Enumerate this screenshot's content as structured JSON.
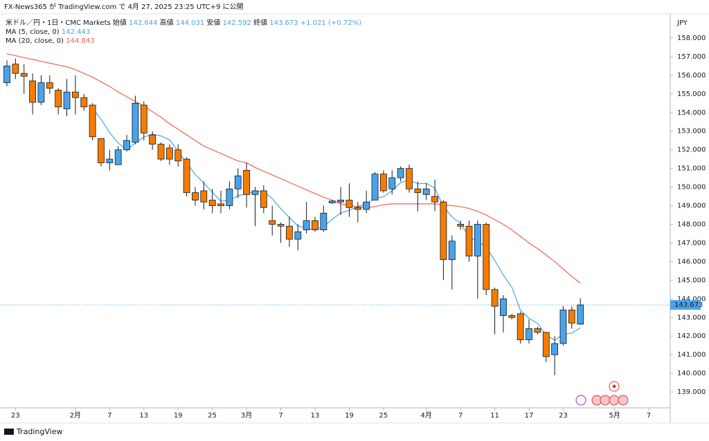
{
  "chart_data": {
    "type": "candlestick",
    "publisher": "FX-News365 が TradingView.com で 4月 27, 2025 23:25 UTC+9 に公開",
    "symbol": "米ドル／円・1日・CMC Markets",
    "ohlc_info": [
      {
        "label": "始値",
        "value": "142.644"
      },
      {
        "label": "高値",
        "value": "144.031"
      },
      {
        "label": "安値",
        "value": "142.592"
      },
      {
        "label": "終値",
        "value": "143.673"
      }
    ],
    "change": "+1.021 (+0.72%)",
    "currency": "JPY",
    "brand": "TradingView",
    "up_color": "#4aa3e8",
    "down_color": "#f57c00",
    "x": [
      0,
      1,
      2,
      3,
      4,
      5,
      6,
      7,
      8,
      9,
      10,
      11,
      12,
      13,
      14,
      15,
      16,
      17,
      18,
      19,
      20,
      21,
      22,
      23,
      24,
      25,
      26,
      27,
      28,
      29,
      30,
      31,
      32,
      33,
      34,
      35,
      36,
      37,
      38,
      39,
      40,
      41,
      42,
      43,
      44,
      45,
      46,
      47,
      48,
      49,
      50,
      51,
      52,
      53,
      54,
      55,
      56,
      57,
      58,
      59,
      60,
      61,
      62,
      63,
      64,
      65,
      66,
      67
    ],
    "open": [
      155.6,
      156.6,
      156.1,
      155.7,
      154.55,
      155.6,
      155.2,
      154.2,
      155.1,
      154.8,
      154.4,
      152.6,
      151.3,
      151.2,
      152.0,
      152.4,
      154.4,
      152.8,
      152.3,
      152.1,
      152.0,
      151.5,
      149.7,
      149.8,
      149.3,
      149.1,
      149.0,
      149.9,
      150.9,
      149.6,
      149.8,
      148.2,
      148.0,
      147.9,
      147.2,
      147.7,
      148.2,
      147.7,
      149.15,
      149.2,
      149.3,
      148.9,
      148.8,
      149.3,
      150.7,
      149.9,
      150.5,
      151.0,
      149.9,
      149.6,
      149.5,
      149.2,
      146.1,
      148.0,
      147.9,
      146.3,
      148.0,
      144.5,
      143.1,
      143.1,
      143.2,
      141.8,
      142.4,
      142.2,
      141.0,
      141.6,
      143.4,
      142.644
    ],
    "high": [
      156.8,
      156.9,
      156.6,
      156.1,
      156.0,
      156.0,
      155.3,
      155.8,
      156.0,
      155.0,
      154.5,
      152.6,
      152.0,
      152.2,
      152.8,
      154.9,
      154.6,
      153.0,
      152.4,
      152.3,
      152.3,
      151.6,
      150.0,
      150.3,
      149.9,
      149.8,
      150.3,
      151.0,
      151.3,
      150.0,
      150.1,
      149.0,
      148.1,
      148.4,
      148.0,
      149.2,
      148.4,
      149.0,
      149.3,
      150.0,
      150.2,
      149.2,
      149.8,
      150.8,
      150.9,
      150.9,
      151.1,
      151.2,
      150.3,
      150.2,
      150.4,
      149.3,
      147.4,
      148.2,
      148.2,
      148.2,
      148.1,
      144.6,
      144.2,
      143.2,
      143.3,
      142.9,
      142.5,
      142.2,
      142.0,
      143.6,
      143.6,
      144.031
    ],
    "low": [
      155.4,
      155.8,
      155.0,
      153.9,
      154.4,
      155.0,
      153.9,
      153.8,
      153.9,
      154.1,
      152.5,
      151.1,
      150.9,
      151.2,
      151.9,
      152.3,
      152.5,
      152.0,
      151.4,
      151.2,
      151.1,
      149.5,
      149.0,
      148.8,
      148.6,
      148.6,
      148.8,
      149.4,
      148.9,
      147.9,
      148.6,
      147.4,
      147.0,
      146.8,
      146.6,
      147.5,
      147.6,
      147.6,
      149.1,
      148.5,
      148.4,
      148.1,
      148.6,
      149.3,
      149.7,
      149.6,
      150.3,
      149.7,
      148.7,
      149.3,
      148.7,
      145.0,
      144.5,
      147.7,
      146.0,
      144.0,
      144.2,
      142.1,
      142.2,
      142.9,
      141.6,
      141.6,
      142.1,
      140.6,
      139.9,
      141.5,
      142.4,
      142.592
    ],
    "close": [
      156.5,
      156.1,
      155.95,
      154.55,
      155.6,
      155.3,
      154.3,
      155.1,
      154.8,
      154.3,
      152.7,
      151.3,
      151.5,
      152.0,
      152.5,
      154.5,
      152.9,
      152.3,
      151.5,
      151.5,
      151.4,
      149.7,
      149.3,
      149.2,
      149.0,
      149.0,
      149.9,
      150.6,
      149.6,
      149.8,
      148.9,
      148.0,
      147.9,
      147.2,
      147.6,
      148.2,
      147.7,
      148.6,
      149.25,
      149.3,
      148.9,
      148.8,
      149.2,
      150.7,
      149.8,
      150.5,
      151.0,
      149.9,
      149.7,
      149.9,
      149.2,
      146.1,
      147.1,
      147.9,
      146.3,
      148.0,
      144.5,
      143.6,
      144.0,
      143.0,
      141.8,
      142.4,
      142.2,
      140.9,
      141.6,
      143.4,
      142.7,
      143.673
    ],
    "last_price": {
      "value": 143.673,
      "label": "143.673"
    },
    "series": [
      {
        "name": "MA (5, close, 0)",
        "color": "#4aa3e8",
        "last_label": "142.443",
        "values": [
          null,
          null,
          null,
          null,
          null,
          null,
          null,
          null,
          null,
          null,
          154.24,
          153.64,
          152.92,
          152.36,
          152.0,
          152.36,
          152.68,
          152.84,
          152.74,
          152.54,
          151.92,
          151.28,
          150.68,
          150.22,
          149.72,
          149.24,
          149.28,
          149.54,
          149.62,
          149.78,
          149.76,
          149.38,
          148.84,
          148.36,
          147.92,
          147.78,
          147.72,
          147.86,
          148.27,
          148.61,
          148.75,
          148.97,
          149.09,
          149.38,
          149.48,
          149.8,
          150.24,
          150.38,
          150.18,
          150.2,
          149.94,
          148.96,
          148.4,
          148.04,
          147.32,
          147.08,
          146.76,
          146.06,
          145.28,
          144.62,
          143.38,
          142.96,
          142.68,
          142.06,
          141.78,
          142.1,
          142.16,
          142.443
        ]
      },
      {
        "name": "MA (20, close, 0)",
        "color": "#f0624d",
        "last_label": "144.843",
        "values": [
          157.15,
          157.05,
          156.95,
          156.85,
          156.75,
          156.65,
          156.55,
          156.45,
          156.3,
          156.1,
          155.9,
          155.65,
          155.4,
          155.1,
          154.85,
          154.6,
          154.35,
          154.05,
          153.75,
          153.4,
          153.1,
          152.8,
          152.5,
          152.2,
          152.0,
          151.8,
          151.6,
          151.4,
          151.3,
          151.05,
          150.85,
          150.65,
          150.45,
          150.25,
          150.05,
          149.85,
          149.65,
          149.45,
          149.3,
          149.1,
          149.0,
          148.95,
          148.9,
          148.95,
          149.05,
          149.1,
          149.1,
          149.1,
          149.1,
          149.1,
          149.1,
          149.05,
          149.0,
          148.95,
          148.85,
          148.7,
          148.5,
          148.25,
          148.0,
          147.7,
          147.35,
          147.0,
          146.7,
          146.35,
          146.0,
          145.6,
          145.2,
          144.843
        ]
      }
    ],
    "xlim": [
      -0.809,
      77.5
    ],
    "xticks": [
      {
        "value": 1,
        "label": "23"
      },
      {
        "value": 8,
        "label": "2月"
      },
      {
        "value": 12,
        "label": "7"
      },
      {
        "value": 16,
        "label": "13"
      },
      {
        "value": 20,
        "label": "19"
      },
      {
        "value": 24,
        "label": "25"
      },
      {
        "value": 28,
        "label": "3月"
      },
      {
        "value": 32,
        "label": "7"
      },
      {
        "value": 36,
        "label": "13"
      },
      {
        "value": 40,
        "label": "19"
      },
      {
        "value": 44,
        "label": "25"
      },
      {
        "value": 49,
        "label": "4月"
      },
      {
        "value": 53,
        "label": "7"
      },
      {
        "value": 57,
        "label": "11"
      },
      {
        "value": 61,
        "label": "17"
      },
      {
        "value": 65,
        "label": "23"
      },
      {
        "value": 71,
        "label": "5月"
      },
      {
        "value": 75,
        "label": "7"
      }
    ],
    "ylim": [
      138.15,
      160.04
    ],
    "yticks": [
      {
        "value": 139,
        "label": "139.000"
      },
      {
        "value": 140,
        "label": "140.000"
      },
      {
        "value": 141,
        "label": "141.000"
      },
      {
        "value": 142,
        "label": "142.000"
      },
      {
        "value": 143,
        "label": "143.000"
      },
      {
        "value": 144,
        "label": "144.000"
      },
      {
        "value": 145,
        "label": "145.000"
      },
      {
        "value": 146,
        "label": "146.000"
      },
      {
        "value": 147,
        "label": "147.000"
      },
      {
        "value": 148,
        "label": "148.000"
      },
      {
        "value": 149,
        "label": "149.000"
      },
      {
        "value": 150,
        "label": "150.000"
      },
      {
        "value": 151,
        "label": "151.000"
      },
      {
        "value": 152,
        "label": "152.000"
      },
      {
        "value": 153,
        "label": "153.000"
      },
      {
        "value": 154,
        "label": "154.000"
      },
      {
        "value": 155,
        "label": "155.000"
      },
      {
        "value": 156,
        "label": "156.000"
      },
      {
        "value": 157,
        "label": "157.000"
      },
      {
        "value": 158,
        "label": "158.000"
      }
    ],
    "grid": false
  }
}
